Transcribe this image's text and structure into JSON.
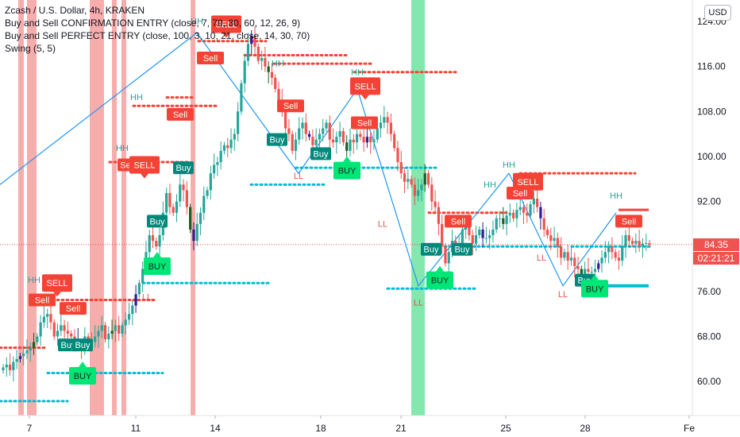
{
  "legend": {
    "symbol": "Zcash / U.S. Dollar, 4h, KRAKEN",
    "indicator1": "Buy and Sell CONFIRMATION ENTRY (close, 7, 70, 30, 60, 12, 26, 9)",
    "indicator2": "Buy and Sell PERFECT ENTRY (close, 100, 3, 10, 21, close, 14, 30, 70)",
    "indicator3": "Swing (5, 5)"
  },
  "currency_button": "USD",
  "last_price": "84.35",
  "countdown": "02:21:21",
  "colors": {
    "up": "#26a69a",
    "down": "#ef5350",
    "bear_bar": "#311b92",
    "bull_bar": "#1b5e20",
    "red_dots": "#f44336",
    "teal_dots": "#00bcd4",
    "swing_line": "#2196f3",
    "sell_label": "#f44336",
    "buy_label": "#00897b",
    "buy_big": "#00e676",
    "red_band": "#f4928f",
    "green_band": "#6fe3a0"
  },
  "chart_data": {
    "type": "candlestick",
    "ylim": [
      56,
      126
    ],
    "y_ticks": [
      "124.00",
      "116.00",
      "108.00",
      "100.00",
      "92.00",
      "84.00",
      "76.00",
      "68.00",
      "60.00"
    ],
    "x_ticks": [
      "7",
      "11",
      "14",
      "18",
      "21",
      "25",
      "28",
      "Fe"
    ],
    "closes": [
      62.5,
      63,
      62,
      63.5,
      64,
      64.5,
      65,
      65.5,
      66,
      67,
      68,
      70.5,
      71.5,
      72,
      70.5,
      68,
      69,
      70,
      69,
      68.5,
      68,
      67.5,
      66.5,
      66,
      68,
      67.5,
      67,
      68,
      69,
      70,
      67.5,
      68.5,
      69,
      70,
      68.5,
      70,
      71,
      72,
      73.5,
      75.5,
      77.5,
      80,
      83,
      86,
      85,
      84,
      86,
      90,
      93.5,
      91,
      90,
      92,
      95,
      94,
      91,
      87,
      85,
      88,
      90,
      93,
      94,
      97,
      98.5,
      99,
      101,
      102,
      101.5,
      103,
      104,
      108,
      113,
      117,
      120,
      121.5,
      119.5,
      117,
      117.5,
      116,
      115,
      114,
      112,
      110,
      108,
      105,
      104,
      101,
      103,
      105,
      106,
      104,
      103.5,
      102,
      103,
      104,
      105,
      106,
      103,
      102.5,
      103.5,
      104.5,
      102.5,
      101,
      103,
      102.5,
      104,
      103.5,
      102.5,
      103.5,
      102.5,
      103,
      105,
      106,
      107,
      106,
      104,
      101.5,
      99,
      97,
      95.5,
      96,
      95,
      93,
      94,
      95,
      97,
      95,
      92,
      91,
      88,
      84,
      81,
      83,
      85,
      84.5,
      84.5,
      87,
      88,
      86,
      84.5,
      86,
      87,
      85.5,
      85.5,
      86,
      87,
      89,
      89,
      88,
      89.5,
      90,
      89,
      90.5,
      91,
      90,
      89.5,
      91.5,
      92.5,
      91,
      89,
      87,
      86,
      85,
      85.5,
      84,
      82,
      83,
      81.5,
      82,
      80.5,
      80,
      79,
      80,
      79.5,
      79.5,
      80,
      81,
      82,
      83,
      84,
      83,
      82,
      81.5,
      84,
      86,
      85,
      84.5,
      85,
      84,
      84.5,
      84.6,
      84.35
    ],
    "markers": [
      {
        "type": "sell_box",
        "text": "SELL",
        "x": 72,
        "price": 77.5
      },
      {
        "type": "sell",
        "text": "Sell",
        "x": 53,
        "price": 74.5
      },
      {
        "type": "sell",
        "text": "Sell",
        "x": 92,
        "price": 73
      },
      {
        "type": "buy",
        "text": "Buy",
        "x": 86,
        "price": 66.5
      },
      {
        "type": "buy",
        "text": "Buy",
        "x": 104,
        "price": 66.5
      },
      {
        "type": "buy_big",
        "text": "BUY",
        "x": 104,
        "price": 61
      },
      {
        "type": "sell",
        "text": "Se",
        "x": 158,
        "price": 98.5
      },
      {
        "type": "sell_box",
        "text": "SELL",
        "x": 182,
        "price": 98.5
      },
      {
        "type": "buy",
        "text": "Buy",
        "x": 198,
        "price": 88.5
      },
      {
        "type": "buy_big",
        "text": "BUY",
        "x": 198,
        "price": 80.5
      },
      {
        "type": "buy",
        "text": "Buy",
        "x": 231,
        "price": 98
      },
      {
        "type": "sell",
        "text": "Sell",
        "x": 227,
        "price": 107.5
      },
      {
        "type": "sell_box",
        "text": "SELL",
        "x": 285,
        "price": 123.5
      },
      {
        "type": "sell",
        "text": "Sell",
        "x": 265,
        "price": 117.5
      },
      {
        "type": "sell",
        "text": "Sell",
        "x": 366,
        "price": 109
      },
      {
        "type": "buy",
        "text": "Buy",
        "x": 349,
        "price": 103
      },
      {
        "type": "buy",
        "text": "Buy",
        "x": 404,
        "price": 100.5
      },
      {
        "type": "buy_big",
        "text": "BUY",
        "x": 437,
        "price": 97.5
      },
      {
        "type": "sell_box",
        "text": "SELL",
        "x": 460,
        "price": 112.5
      },
      {
        "type": "sell",
        "text": "Sell",
        "x": 459,
        "price": 106
      },
      {
        "type": "buy",
        "text": "Buy",
        "x": 543,
        "price": 83.5
      },
      {
        "type": "buy_big",
        "text": "BUY",
        "x": 554,
        "price": 78
      },
      {
        "type": "sell",
        "text": "Sell",
        "x": 577,
        "price": 88.5
      },
      {
        "type": "buy",
        "text": "Buy",
        "x": 582,
        "price": 83.5
      },
      {
        "type": "sell_box",
        "text": "SELL",
        "x": 665,
        "price": 95.5
      },
      {
        "type": "sell",
        "text": "Sell",
        "x": 655,
        "price": 93.5
      },
      {
        "type": "buy",
        "text": "Buy",
        "x": 737,
        "price": 78
      },
      {
        "type": "buy_big",
        "text": "BUY",
        "x": 749,
        "price": 76.5
      },
      {
        "type": "sell",
        "text": "Sell",
        "x": 792,
        "price": 88.5
      }
    ],
    "swing_labels": [
      {
        "text": "HH",
        "x": 43,
        "price": 77.5
      },
      {
        "text": "HH",
        "x": 154,
        "price": 101
      },
      {
        "text": "HH",
        "x": 172,
        "price": 110
      },
      {
        "text": "HH",
        "x": 248,
        "price": 123.5
      },
      {
        "text": "HH",
        "x": 350,
        "price": 116
      },
      {
        "text": "HH",
        "x": 450,
        "price": 114.5
      },
      {
        "text": "HH",
        "x": 617,
        "price": 94.5
      },
      {
        "text": "HH",
        "x": 641,
        "price": 98
      },
      {
        "text": "HH",
        "x": 776,
        "price": 92.5
      },
      {
        "text": "LL",
        "x": 185,
        "price": 74.5
      },
      {
        "text": "LL",
        "x": 376,
        "price": 96
      },
      {
        "text": "LL",
        "x": 482,
        "price": 87.5
      },
      {
        "text": "LL",
        "x": 527,
        "price": 73.5
      },
      {
        "text": "LL",
        "x": 682,
        "price": 81.5
      },
      {
        "text": "LL",
        "x": 709,
        "price": 75
      }
    ]
  }
}
